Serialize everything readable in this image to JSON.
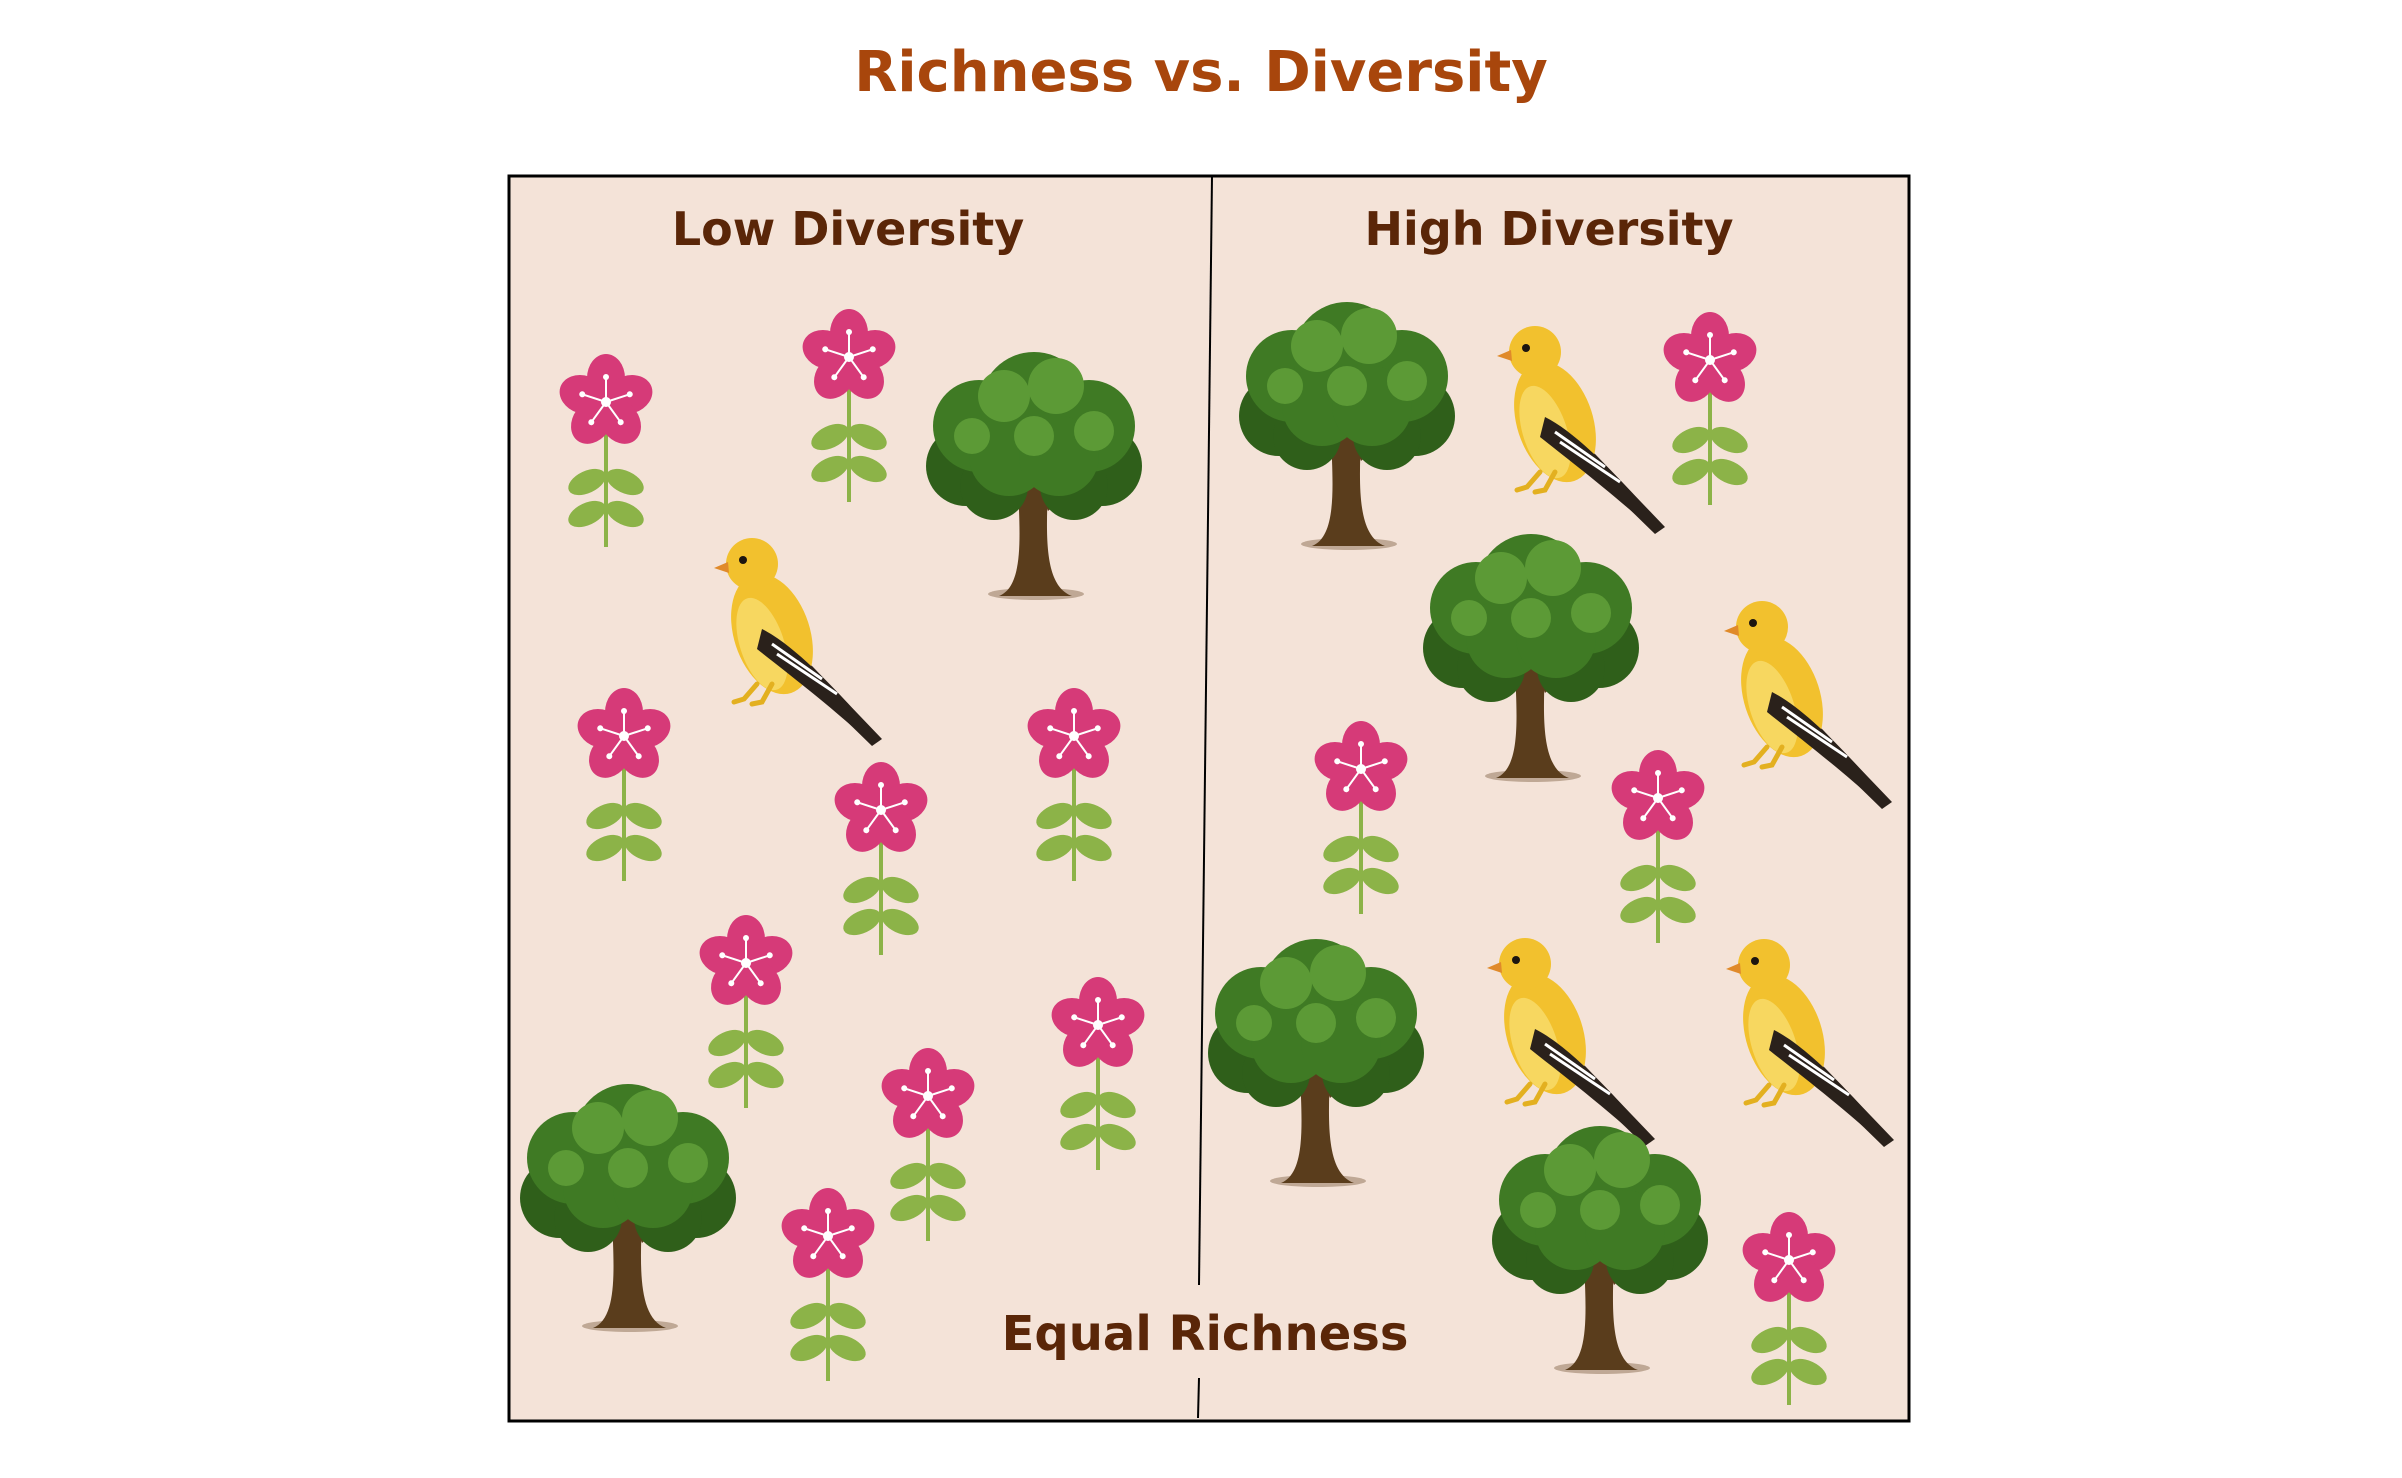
{
  "title": "Richness vs. Diversity",
  "panels": {
    "left": {
      "label": "Low Diversity"
    },
    "right": {
      "label": "High Diversity"
    }
  },
  "footer_label": "Equal Richness",
  "colors": {
    "title": "#a8460c",
    "labels": "#5a2608",
    "panel_bg": "#f4e3d8",
    "flower": "#d63a78",
    "leaf": "#8cb348",
    "tree_canopy": "#3f7a24",
    "tree_trunk": "#5a3d1c",
    "bird_body": "#f2c12e",
    "bird_wing": "#2a211b"
  },
  "icons": [
    "flower-icon",
    "tree-icon",
    "bird-icon"
  ]
}
